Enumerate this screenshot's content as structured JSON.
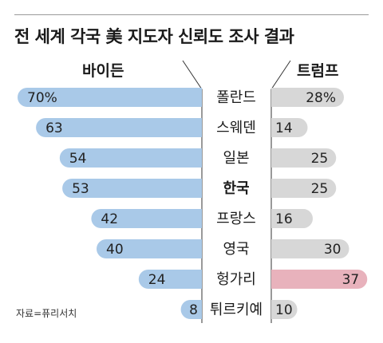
{
  "title": "전 세계 각국 美 지도자 신뢰도 조사 결과",
  "source": "자료=퓨리서치",
  "colors": {
    "biden": "#a9c9e8",
    "trump": "#d7d7d7",
    "trump_highlight": "#e8b2bc",
    "divider": "#333333"
  },
  "chart_data": {
    "type": "bar",
    "title": "전 세계 각국 美 지도자 신뢰도 조사 결과",
    "categories": [
      "폴란드",
      "스웨덴",
      "일본",
      "한국",
      "프랑스",
      "영국",
      "헝가리",
      "튀르키예"
    ],
    "bold_category": "한국",
    "series": [
      {
        "name": "바이든",
        "values": [
          70,
          63,
          54,
          53,
          42,
          40,
          24,
          8
        ],
        "labels": [
          "70%",
          "63",
          "54",
          "53",
          "42",
          "40",
          "24",
          "8"
        ]
      },
      {
        "name": "트럼프",
        "values": [
          28,
          14,
          25,
          25,
          16,
          30,
          37,
          10
        ],
        "labels": [
          "28%",
          "14",
          "25",
          "25",
          "16",
          "30",
          "37",
          "10"
        ]
      }
    ],
    "highlight": {
      "series": "트럼프",
      "category": "헝가리"
    },
    "unit": "%"
  }
}
